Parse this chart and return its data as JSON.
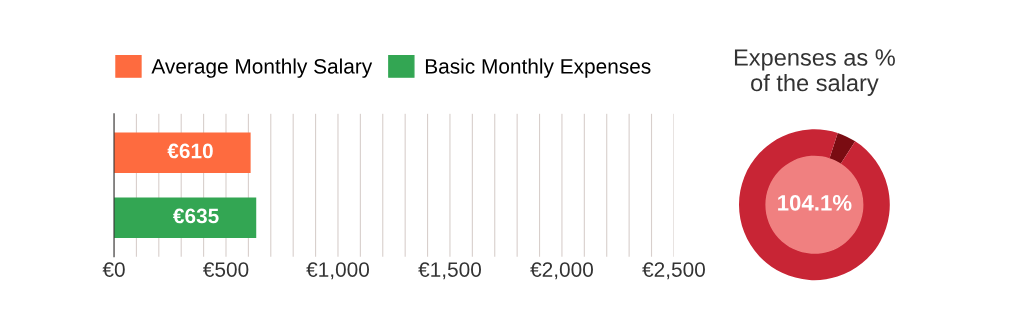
{
  "chart_data": [
    {
      "type": "bar",
      "orientation": "horizontal",
      "categories": [
        null,
        null
      ],
      "series": [
        {
          "name": "Average Monthly Salary",
          "color": "#fe6b3f",
          "values": [
            610,
            null
          ],
          "value_labels": [
            "€610",
            null
          ]
        },
        {
          "name": "Basic Monthly Expenses",
          "color": "#33a653",
          "values": [
            null,
            635
          ],
          "value_labels": [
            null,
            "€635"
          ]
        }
      ],
      "xlim": [
        0,
        2500
      ],
      "xticks": [
        {
          "value": 0,
          "label": "€0"
        },
        {
          "value": 100,
          "label": null
        },
        {
          "value": 200,
          "label": null
        },
        {
          "value": 300,
          "label": null
        },
        {
          "value": 400,
          "label": null
        },
        {
          "value": 500,
          "label": "€500"
        },
        {
          "value": 600,
          "label": null
        },
        {
          "value": 700,
          "label": null
        },
        {
          "value": 800,
          "label": null
        },
        {
          "value": 900,
          "label": null
        },
        {
          "value": 1000,
          "label": "€1,000"
        },
        {
          "value": 1100,
          "label": null
        },
        {
          "value": 1200,
          "label": null
        },
        {
          "value": 1300,
          "label": null
        },
        {
          "value": 1400,
          "label": null
        },
        {
          "value": 1500,
          "label": "€1,500"
        },
        {
          "value": 1600,
          "label": null
        },
        {
          "value": 1700,
          "label": null
        },
        {
          "value": 1800,
          "label": null
        },
        {
          "value": 1900,
          "label": null
        },
        {
          "value": 2000,
          "label": "€2,000"
        },
        {
          "value": 2100,
          "label": null
        },
        {
          "value": 2200,
          "label": null
        },
        {
          "value": 2300,
          "label": null
        },
        {
          "value": 2400,
          "label": null
        },
        {
          "value": 2500,
          "label": "€2,500"
        }
      ],
      "grid": "x",
      "legend": "top left",
      "tick_labels": "x"
    },
    {
      "type": "donut",
      "title": "Expenses as %\nof the salary",
      "categories": [
        null,
        null
      ],
      "values": [
        4.1,
        95.9
      ],
      "colors": [
        "#7a0c12",
        "#c82535"
      ],
      "annotations": [
        "104.1%"
      ]
    }
  ]
}
